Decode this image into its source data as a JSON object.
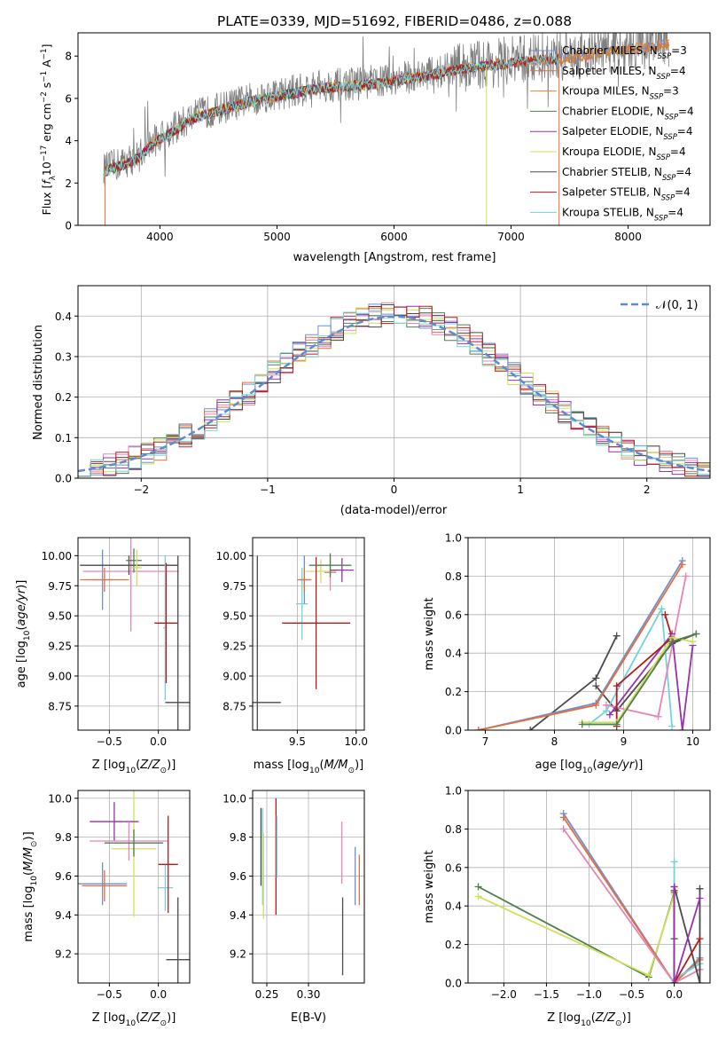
{
  "colors": {
    "chabrier_miles": "#6d8fd6",
    "salpeter_miles": "#e36f3a",
    "kroupa_miles": "#d68a2e",
    "chabrier_elodie": "#4f7f4f",
    "salpeter_elodie": "#9a2fb0",
    "kroupa_elodie": "#cfe05a",
    "chabrier_stelib": "#4a4a4a",
    "salpeter_stelib": "#b31b1b",
    "kroupa_stelib": "#72d3d8",
    "pink": "#e585b5",
    "spectrum": "#808080",
    "normal": "#5b8bd6"
  },
  "chart_data": [
    {
      "type": "line",
      "title": "PLATE=0339, MJD=51692, FIBERID=0486, z=0.088",
      "xlabel": "wavelength [Angstrom, rest frame]",
      "ylabel": "Flux [f_λ10^−17 erg cm^−2 s^−1 A^−1]",
      "xlim": [
        3300,
        8700
      ],
      "ylim": [
        0,
        9.1
      ],
      "xticks": [
        "4000",
        "5000",
        "6000",
        "7000",
        "8000"
      ],
      "yticks": [
        "0",
        "2",
        "4",
        "6",
        "8"
      ],
      "grid": false,
      "legend": "upper right",
      "spectrum_anchors": {
        "x": [
          3500,
          3650,
          3800,
          3950,
          4100,
          4300,
          4500,
          4800,
          5100,
          5400,
          5700,
          6000,
          6300,
          6600,
          6900,
          7200,
          7500,
          7800,
          8100,
          8350
        ],
        "y": [
          2.6,
          2.9,
          3.2,
          4.0,
          4.5,
          5.2,
          5.5,
          6.0,
          6.3,
          6.6,
          6.7,
          6.9,
          7.2,
          7.5,
          7.7,
          7.9,
          8.0,
          8.3,
          8.5,
          8.7
        ]
      },
      "series": [
        {
          "name": "Chabrier MILES",
          "nssp": "3"
        },
        {
          "name": "Salpeter MILES",
          "nssp": "4"
        },
        {
          "name": "Kroupa MILES",
          "nssp": "3"
        },
        {
          "name": "Chabrier ELODIE",
          "nssp": "4"
        },
        {
          "name": "Salpeter ELODIE",
          "nssp": "4"
        },
        {
          "name": "Kroupa ELODIE",
          "nssp": "4"
        },
        {
          "name": "Chabrier STELIB",
          "nssp": "4"
        },
        {
          "name": "Salpeter STELIB",
          "nssp": "4"
        },
        {
          "name": "Kroupa STELIB",
          "nssp": "4"
        }
      ]
    },
    {
      "type": "histogram",
      "xlabel": "(data-model)/error",
      "ylabel": "Normed distribution",
      "xlim": [
        -2.5,
        2.5
      ],
      "ylim": [
        0,
        0.475
      ],
      "xticks": [
        "−2",
        "−1",
        "0",
        "1",
        "2"
      ],
      "yticks": [
        "0.0",
        "0.1",
        "0.2",
        "0.3",
        "0.4"
      ],
      "grid": true,
      "legend": "upper right",
      "legend_label": "𝒩(0, 1)",
      "bin_width": 0.1
    },
    {
      "type": "scatter",
      "xlabel": "Z [log10(Z/Z⊙)]",
      "ylabel": "age  [log10(age/yr)]",
      "xlim": [
        -0.82,
        0.32
      ],
      "ylim": [
        8.55,
        10.15
      ],
      "xticks": [
        {
          "v": -0.5,
          "t": "−0.5"
        },
        {
          "v": 0.0,
          "t": "0.0"
        }
      ],
      "yticks": [
        {
          "v": 8.75,
          "t": "8.75"
        },
        {
          "v": 9.0,
          "t": "9.00"
        },
        {
          "v": 9.25,
          "t": "9.25"
        },
        {
          "v": 9.5,
          "t": "9.50"
        },
        {
          "v": 9.75,
          "t": "9.75"
        },
        {
          "v": 10.0,
          "t": "10.00"
        }
      ],
      "points": [
        {
          "c": "chabrier_miles",
          "x": -0.57,
          "ex": 0.1,
          "y": 9.8,
          "ey": 0.25
        },
        {
          "c": "salpeter_miles",
          "x": -0.55,
          "ex": 0.25,
          "y": 9.8,
          "ey": 0.1
        },
        {
          "c": "pink",
          "x": -0.28,
          "ex": 0.49,
          "y": 9.87,
          "ey": 0.5
        },
        {
          "c": "chabrier_stelib",
          "x": -0.3,
          "ex": 0.5,
          "y": 9.92,
          "ey": 0.08
        },
        {
          "c": "chabrier_elodie",
          "x": -0.25,
          "ex": 0.08,
          "y": 9.96,
          "ey": 0.1
        },
        {
          "c": "kroupa_elodie",
          "x": -0.22,
          "ex": 0.05,
          "y": 9.9,
          "ey": 0.15
        },
        {
          "c": "kroupa_stelib",
          "x": 0.07,
          "ex": 0.02,
          "y": 9.4,
          "ey": 0.6
        },
        {
          "c": "salpeter_stelib",
          "x": 0.08,
          "ex": 0.12,
          "y": 9.44,
          "ey": 0.5
        },
        {
          "c": "chabrier_stelib",
          "x": 0.2,
          "ex": 0.13,
          "y": 8.78,
          "ey": 1.22
        }
      ]
    },
    {
      "type": "scatter",
      "xlabel": "mass [log10(M/M⊙)]",
      "ylabel": "",
      "xlim": [
        9.12,
        10.07
      ],
      "ylim": [
        8.55,
        10.15
      ],
      "xticks": [
        {
          "v": 9.5,
          "t": "9.5"
        },
        {
          "v": 10.0,
          "t": "10.0"
        }
      ],
      "yticks": [
        {
          "v": 8.75,
          "t": "8.75"
        },
        {
          "v": 9.0,
          "t": "9.00"
        },
        {
          "v": 9.25,
          "t": "9.25"
        },
        {
          "v": 9.5,
          "t": "9.50"
        },
        {
          "v": 9.75,
          "t": "9.75"
        },
        {
          "v": 10.0,
          "t": "10.00"
        }
      ],
      "points": [
        {
          "c": "chabrier_stelib",
          "x": 9.16,
          "ex": 0.2,
          "y": 8.78,
          "ey": 1.22
        },
        {
          "c": "kroupa_stelib",
          "x": 9.54,
          "ex": 0.05,
          "y": 9.6,
          "ey": 0.3
        },
        {
          "c": "chabrier_miles",
          "x": 9.56,
          "ex": 0.05,
          "y": 9.8,
          "ey": 0.2
        },
        {
          "c": "salpeter_miles",
          "x": 9.56,
          "ex": 0.06,
          "y": 9.8,
          "ey": 0.1
        },
        {
          "c": "kroupa_elodie",
          "x": 9.7,
          "ex": 0.13,
          "y": 9.87,
          "ey": 0.1
        },
        {
          "c": "salpeter_stelib",
          "x": 9.66,
          "ex": 0.29,
          "y": 9.44,
          "ey": 0.55
        },
        {
          "c": "pink",
          "x": 9.78,
          "ex": 0.05,
          "y": 9.86,
          "ey": 0.15
        },
        {
          "c": "salpeter_elodie",
          "x": 9.88,
          "ex": 0.1,
          "y": 9.88,
          "ey": 0.1
        },
        {
          "c": "chabrier_elodie",
          "x": 9.78,
          "ex": 0.18,
          "y": 9.92,
          "ey": 0.1
        }
      ]
    },
    {
      "type": "line",
      "xlabel": "age  [log10(age/yr)]",
      "ylabel": "mass weight",
      "xlim": [
        6.75,
        10.25
      ],
      "ylim": [
        0,
        1.0
      ],
      "xticks": [
        {
          "v": 7,
          "t": "7"
        },
        {
          "v": 8,
          "t": "8"
        },
        {
          "v": 9,
          "t": "9"
        },
        {
          "v": 10,
          "t": "10"
        }
      ],
      "yticks": [
        {
          "v": 0,
          "t": "0.0"
        },
        {
          "v": 0.2,
          "t": "0.2"
        },
        {
          "v": 0.4,
          "t": "0.4"
        },
        {
          "v": 0.6,
          "t": "0.6"
        },
        {
          "v": 0.8,
          "t": "0.8"
        },
        {
          "v": 1.0,
          "t": "1.0"
        }
      ],
      "grid": true,
      "series": [
        {
          "c": "chabrier_stelib",
          "x": [
            7.65,
            8.6,
            8.9
          ],
          "y": [
            0.0,
            0.27,
            0.49
          ]
        },
        {
          "c": "chabrier_stelib",
          "x": [
            8.6,
            8.9,
            9.7,
            10.05
          ],
          "y": [
            0.23,
            0.1,
            0.45,
            0.5
          ]
        },
        {
          "c": "chabrier_miles",
          "x": [
            6.9,
            8.6,
            9.85
          ],
          "y": [
            0.0,
            0.14,
            0.88
          ]
        },
        {
          "c": "salpeter_miles",
          "x": [
            6.9,
            8.6,
            9.85
          ],
          "y": [
            0.0,
            0.13,
            0.86
          ]
        },
        {
          "c": "kroupa_stelib",
          "x": [
            8.5,
            8.75,
            9.55,
            9.7
          ],
          "y": [
            0.03,
            0.1,
            0.63,
            0.02
          ]
        },
        {
          "c": "pink",
          "x": [
            8.75,
            9.5,
            9.9
          ],
          "y": [
            0.13,
            0.07,
            0.8
          ]
        },
        {
          "c": "salpeter_elodie",
          "x": [
            8.8,
            9.7,
            9.85,
            10.0
          ],
          "y": [
            0.08,
            0.5,
            0.0,
            0.44
          ]
        },
        {
          "c": "salpeter_stelib",
          "x": [
            8.9,
            8.9,
            9.7,
            9.6
          ],
          "y": [
            0.02,
            0.23,
            0.48,
            0.6
          ]
        },
        {
          "c": "kroupa_elodie",
          "x": [
            8.4,
            8.9,
            9.7,
            10.0
          ],
          "y": [
            0.04,
            0.04,
            0.48,
            0.46
          ]
        },
        {
          "c": "chabrier_elodie",
          "x": [
            8.4,
            8.9,
            9.7,
            10.05
          ],
          "y": [
            0.03,
            0.03,
            0.46,
            0.5
          ]
        }
      ]
    },
    {
      "type": "scatter",
      "xlabel": "Z [log10(Z/Z⊙)]",
      "ylabel": "mass [log10(M/M⊙)]",
      "xlim": [
        -0.82,
        0.32
      ],
      "ylim": [
        9.05,
        10.04
      ],
      "xticks": [
        {
          "v": -0.5,
          "t": "−0.5"
        },
        {
          "v": 0.0,
          "t": "0.0"
        }
      ],
      "yticks": [
        {
          "v": 9.2,
          "t": "9.2"
        },
        {
          "v": 9.4,
          "t": "9.4"
        },
        {
          "v": 9.6,
          "t": "9.6"
        },
        {
          "v": 9.8,
          "t": "9.8"
        },
        {
          "v": 10.0,
          "t": "10.0"
        }
      ],
      "points": [
        {
          "c": "chabrier_miles",
          "x": -0.57,
          "ex": 0.25,
          "y": 9.56,
          "ey": 0.11
        },
        {
          "c": "salpeter_miles",
          "x": -0.55,
          "ex": 0.23,
          "y": 9.55,
          "ey": 0.08
        },
        {
          "c": "kroupa_elodie",
          "x": -0.25,
          "ex": 0.23,
          "y": 9.74,
          "ey": 0.35
        },
        {
          "c": "salpeter_elodie",
          "x": -0.45,
          "ex": 0.25,
          "y": 9.88,
          "ey": 0.1
        },
        {
          "c": "pink",
          "x": -0.3,
          "ex": 0.4,
          "y": 9.78,
          "ey": 0.1
        },
        {
          "c": "chabrier_elodie",
          "x": -0.25,
          "ex": 0.3,
          "y": 9.77,
          "ey": 0.07
        },
        {
          "c": "kroupa_stelib",
          "x": 0.07,
          "ex": 0.08,
          "y": 9.54,
          "ey": 0.12
        },
        {
          "c": "salpeter_stelib",
          "x": 0.1,
          "ex": 0.1,
          "y": 9.66,
          "ey": 0.25
        },
        {
          "c": "chabrier_stelib",
          "x": 0.2,
          "ex": 0.12,
          "y": 9.17,
          "ey": 0.32
        }
      ]
    },
    {
      "type": "scatter",
      "xlabel": "E(B-V)",
      "ylabel": "",
      "xlim": [
        0.233,
        0.367
      ],
      "ylim": [
        9.05,
        10.04
      ],
      "xticks": [
        {
          "v": 0.25,
          "t": "0.25"
        },
        {
          "v": 0.3,
          "t": "0.30"
        }
      ],
      "yticks": [
        {
          "v": 9.2,
          "t": "9.2"
        },
        {
          "v": 9.4,
          "t": "9.4"
        },
        {
          "v": 9.6,
          "t": "9.6"
        },
        {
          "v": 9.8,
          "t": "9.8"
        },
        {
          "v": 10.0,
          "t": "10.0"
        }
      ],
      "points": [
        {
          "c": "chabrier_stelib",
          "x": 0.243,
          "ex": 0,
          "y": 9.75,
          "ey": 0.2
        },
        {
          "c": "kroupa_stelib",
          "x": 0.245,
          "ex": 0,
          "y": 9.7,
          "ey": 0.25
        },
        {
          "c": "kroupa_elodie",
          "x": 0.246,
          "ex": 0,
          "y": 9.6,
          "ey": 0.22
        },
        {
          "c": "salpeter_stelib",
          "x": 0.261,
          "ex": 0,
          "y": 9.7,
          "ey": 0.3
        },
        {
          "c": "kroupa_stelib",
          "x": 0.262,
          "ex": 0,
          "y": 9.75,
          "ey": 0.16
        },
        {
          "c": "pink",
          "x": 0.34,
          "ex": 0,
          "y": 9.72,
          "ey": 0.16
        },
        {
          "c": "chabrier_stelib",
          "x": 0.341,
          "ex": 0,
          "y": 9.29,
          "ey": 0.2
        },
        {
          "c": "chabrier_miles",
          "x": 0.356,
          "ex": 0,
          "y": 9.6,
          "ey": 0.15
        },
        {
          "c": "salpeter_miles",
          "x": 0.361,
          "ex": 0,
          "y": 9.58,
          "ey": 0.13
        }
      ]
    },
    {
      "type": "line",
      "xlabel": "Z [log10(Z/Z⊙)]",
      "ylabel": "mass weight",
      "xlim": [
        -2.42,
        0.42
      ],
      "ylim": [
        0,
        1.0
      ],
      "xticks": [
        {
          "v": -2.0,
          "t": "−2.0"
        },
        {
          "v": -1.5,
          "t": "−1.5"
        },
        {
          "v": -1.0,
          "t": "−1.0"
        },
        {
          "v": -0.5,
          "t": "−0.5"
        },
        {
          "v": 0.0,
          "t": "0.0"
        }
      ],
      "yticks": [
        {
          "v": 0,
          "t": "0.0"
        },
        {
          "v": 0.2,
          "t": "0.2"
        },
        {
          "v": 0.4,
          "t": "0.4"
        },
        {
          "v": 0.6,
          "t": "0.6"
        },
        {
          "v": 0.8,
          "t": "0.8"
        },
        {
          "v": 1.0,
          "t": "1.0"
        }
      ],
      "grid": true,
      "series": [
        {
          "c": "chabrier_elodie",
          "x": [
            -2.3,
            -0.3,
            0.0
          ],
          "y": [
            0.5,
            0.03,
            0.47
          ]
        },
        {
          "c": "kroupa_elodie",
          "x": [
            -2.3,
            -0.3,
            0.0
          ],
          "y": [
            0.45,
            0.04,
            0.46
          ]
        },
        {
          "c": "chabrier_miles",
          "x": [
            -1.3,
            0.0,
            0.3
          ],
          "y": [
            0.88,
            0.0,
            0.13
          ]
        },
        {
          "c": "salpeter_miles",
          "x": [
            -1.3,
            0.0,
            0.3
          ],
          "y": [
            0.86,
            0.0,
            0.12
          ]
        },
        {
          "c": "pink",
          "x": [
            -1.3,
            0.0,
            0.3
          ],
          "y": [
            0.8,
            0.0,
            0.07
          ]
        },
        {
          "c": "kroupa_stelib",
          "x": [
            0.0,
            0.0,
            0.3
          ],
          "y": [
            0.63,
            0.02,
            0.1
          ]
        },
        {
          "c": "chabrier_stelib",
          "x": [
            0.0,
            0.0,
            0.0,
            0.3,
            0.3
          ],
          "y": [
            0.0,
            0.23,
            0.5,
            0.0,
            0.49
          ]
        },
        {
          "c": "salpeter_stelib",
          "x": [
            0.0,
            0.0,
            0.3
          ],
          "y": [
            0.48,
            0.0,
            0.23
          ]
        },
        {
          "c": "salpeter_elodie",
          "x": [
            0.0,
            0.0,
            0.3
          ],
          "y": [
            0.5,
            0.0,
            0.44
          ]
        }
      ]
    }
  ]
}
